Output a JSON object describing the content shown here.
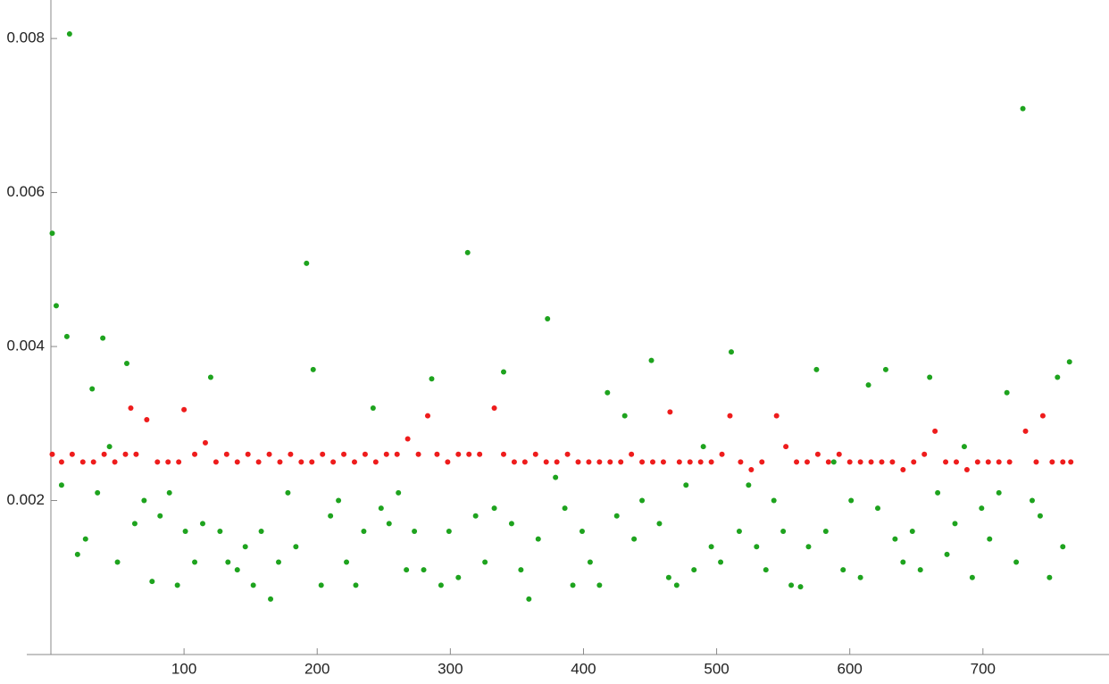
{
  "chart_data": {
    "type": "scatter",
    "xlim": [
      0,
      792
    ],
    "ylim": [
      0,
      0.0085
    ],
    "xticks": [
      100,
      200,
      300,
      400,
      500,
      600,
      700
    ],
    "yticks": [
      0.002,
      0.004,
      0.006,
      0.008
    ],
    "series": [
      {
        "color": "#ee1c1c",
        "x": [
          1,
          8,
          16,
          24,
          32,
          40,
          48,
          56,
          60,
          64,
          72,
          80,
          88,
          96,
          100,
          108,
          116,
          124,
          132,
          140,
          148,
          156,
          164,
          172,
          180,
          188,
          196,
          204,
          212,
          220,
          228,
          236,
          244,
          252,
          260,
          268,
          276,
          283,
          290,
          298,
          306,
          314,
          322,
          333,
          340,
          348,
          356,
          364,
          372,
          380,
          388,
          396,
          404,
          412,
          420,
          428,
          436,
          444,
          452,
          460,
          465,
          472,
          480,
          488,
          496,
          504,
          510,
          518,
          526,
          534,
          545,
          552,
          560,
          568,
          576,
          584,
          592,
          600,
          608,
          616,
          624,
          632,
          640,
          648,
          656,
          664,
          672,
          680,
          688,
          696,
          704,
          712,
          720,
          732,
          740,
          745,
          752,
          760,
          766
        ],
        "values": [
          0.0026,
          0.0025,
          0.0026,
          0.0025,
          0.0025,
          0.0026,
          0.0025,
          0.0026,
          0.0032,
          0.0026,
          0.00305,
          0.0025,
          0.0025,
          0.0025,
          0.00318,
          0.0026,
          0.00275,
          0.0025,
          0.0026,
          0.0025,
          0.0026,
          0.0025,
          0.0026,
          0.0025,
          0.0026,
          0.0025,
          0.0025,
          0.0026,
          0.0025,
          0.0026,
          0.0025,
          0.0026,
          0.0025,
          0.0026,
          0.0026,
          0.0028,
          0.0026,
          0.0031,
          0.0026,
          0.0025,
          0.0026,
          0.0026,
          0.0026,
          0.0032,
          0.0026,
          0.0025,
          0.0025,
          0.0026,
          0.0025,
          0.0025,
          0.0026,
          0.0025,
          0.0025,
          0.0025,
          0.0025,
          0.0025,
          0.0026,
          0.0025,
          0.0025,
          0.0025,
          0.00315,
          0.0025,
          0.0025,
          0.0025,
          0.0025,
          0.0026,
          0.0031,
          0.0025,
          0.0024,
          0.0025,
          0.0031,
          0.0027,
          0.0025,
          0.0025,
          0.0026,
          0.0025,
          0.0026,
          0.0025,
          0.0025,
          0.0025,
          0.0025,
          0.0025,
          0.0024,
          0.0025,
          0.0026,
          0.0029,
          0.0025,
          0.0025,
          0.0024,
          0.0025,
          0.0025,
          0.0025,
          0.0025,
          0.0029,
          0.0025,
          0.0031,
          0.0025,
          0.0025,
          0.0025
        ]
      },
      {
        "color": "#1ea31e",
        "x": [
          1,
          4,
          8,
          12,
          14,
          20,
          26,
          31,
          35,
          39,
          44,
          50,
          57,
          63,
          70,
          76,
          82,
          89,
          95,
          101,
          108,
          114,
          120,
          127,
          133,
          140,
          146,
          152,
          158,
          165,
          171,
          178,
          184,
          192,
          197,
          203,
          210,
          216,
          222,
          229,
          235,
          242,
          248,
          254,
          261,
          267,
          273,
          280,
          286,
          293,
          299,
          306,
          313,
          319,
          326,
          333,
          340,
          346,
          353,
          359,
          366,
          373,
          379,
          386,
          392,
          399,
          405,
          412,
          418,
          425,
          431,
          438,
          444,
          451,
          457,
          464,
          470,
          477,
          483,
          490,
          496,
          503,
          511,
          517,
          524,
          530,
          537,
          543,
          550,
          556,
          563,
          569,
          575,
          582,
          588,
          595,
          601,
          608,
          614,
          621,
          627,
          634,
          640,
          647,
          653,
          660,
          666,
          673,
          679,
          686,
          692,
          699,
          705,
          712,
          718,
          725,
          730,
          737,
          743,
          750,
          756,
          760,
          765
        ],
        "values": [
          0.00547,
          0.00453,
          0.0022,
          0.00413,
          0.00806,
          0.0013,
          0.0015,
          0.00345,
          0.0021,
          0.00411,
          0.0027,
          0.0012,
          0.00378,
          0.0017,
          0.002,
          0.00095,
          0.0018,
          0.0021,
          0.0009,
          0.0016,
          0.0012,
          0.0017,
          0.0036,
          0.0016,
          0.0012,
          0.0011,
          0.0014,
          0.0009,
          0.0016,
          0.00072,
          0.0012,
          0.0021,
          0.0014,
          0.00508,
          0.0037,
          0.0009,
          0.0018,
          0.002,
          0.0012,
          0.0009,
          0.0016,
          0.0032,
          0.0019,
          0.0017,
          0.0021,
          0.0011,
          0.0016,
          0.0011,
          0.00358,
          0.0009,
          0.0016,
          0.001,
          0.00522,
          0.0018,
          0.0012,
          0.0019,
          0.00367,
          0.0017,
          0.0011,
          0.00072,
          0.0015,
          0.00436,
          0.0023,
          0.0019,
          0.0009,
          0.0016,
          0.0012,
          0.0009,
          0.0034,
          0.0018,
          0.0031,
          0.0015,
          0.002,
          0.00382,
          0.0017,
          0.001,
          0.0009,
          0.0022,
          0.0011,
          0.0027,
          0.0014,
          0.0012,
          0.00393,
          0.0016,
          0.0022,
          0.0014,
          0.0011,
          0.002,
          0.0016,
          0.0009,
          0.00088,
          0.0014,
          0.0037,
          0.0016,
          0.0025,
          0.0011,
          0.002,
          0.001,
          0.0035,
          0.0019,
          0.0037,
          0.0015,
          0.0012,
          0.0016,
          0.0011,
          0.0036,
          0.0021,
          0.0013,
          0.0017,
          0.0027,
          0.001,
          0.0019,
          0.0015,
          0.0021,
          0.0034,
          0.0012,
          0.00709,
          0.002,
          0.0018,
          0.001,
          0.0036,
          0.0014,
          0.0038
        ]
      }
    ]
  }
}
